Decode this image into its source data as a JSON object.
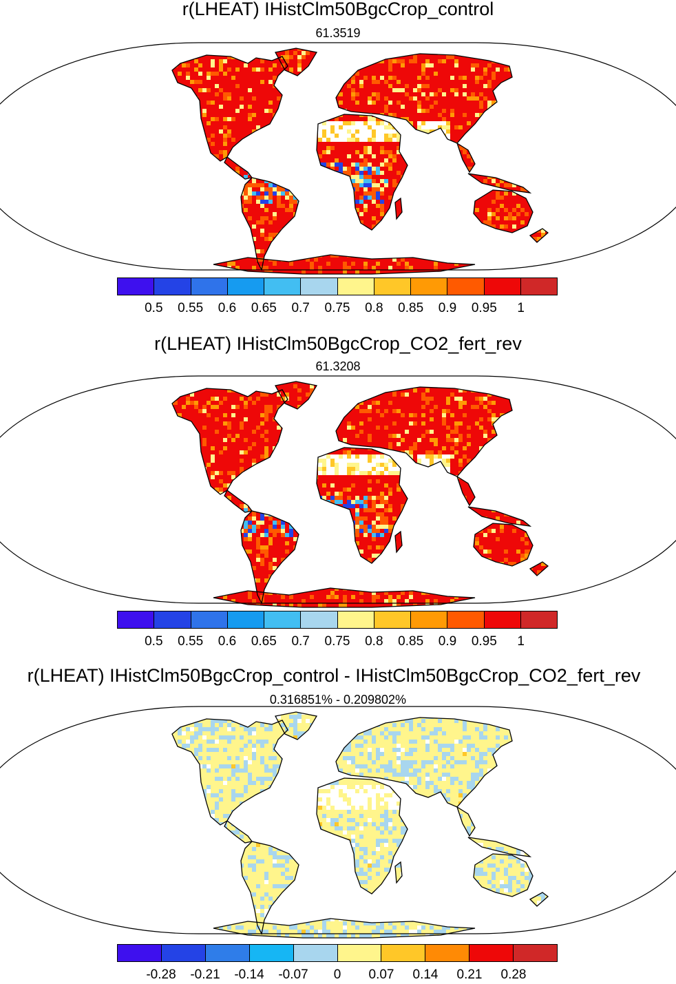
{
  "panels": [
    {
      "title": "r(LHEAT) IHistClm50BgcCrop_control",
      "subtitle": "61.3519",
      "field": "high",
      "colorbar": {
        "colors": [
          "#3e10ee",
          "#2443e6",
          "#2f73ea",
          "#169bf0",
          "#42bef2",
          "#a8d6ee",
          "#fff58c",
          "#ffc728",
          "#ff9a05",
          "#ff5a00",
          "#ee0808",
          "#d02828"
        ],
        "labels": [
          "0.5",
          "0.55",
          "0.6",
          "0.65",
          "0.7",
          "0.75",
          "0.8",
          "0.85",
          "0.9",
          "0.95",
          "1"
        ]
      }
    },
    {
      "title": "r(LHEAT) IHistClm50BgcCrop_CO2_fert_rev",
      "subtitle": "61.3208",
      "field": "high",
      "colorbar": {
        "colors": [
          "#3e10ee",
          "#2443e6",
          "#2f73ea",
          "#169bf0",
          "#42bef2",
          "#a8d6ee",
          "#fff58c",
          "#ffc728",
          "#ff9a05",
          "#ff5a00",
          "#ee0808",
          "#d02828"
        ],
        "labels": [
          "0.5",
          "0.55",
          "0.6",
          "0.65",
          "0.7",
          "0.75",
          "0.8",
          "0.85",
          "0.9",
          "0.95",
          "1"
        ]
      }
    },
    {
      "title": "r(LHEAT) IHistClm50BgcCrop_control - IHistClm50BgcCrop_CO2_fert_rev",
      "subtitle": "0.316851% - 0.209802%",
      "field": "diff",
      "colorbar": {
        "colors": [
          "#3e10ee",
          "#2443e6",
          "#2f7de9",
          "#16b6f4",
          "#a8d6ee",
          "#fff58c",
          "#ffc728",
          "#ff8a05",
          "#ee0808",
          "#d02828"
        ],
        "labels": [
          "-0.28",
          "-0.21",
          "-0.14",
          "-0.07",
          "0",
          "0.07",
          "0.14",
          "0.21",
          "0.28"
        ]
      }
    }
  ]
}
